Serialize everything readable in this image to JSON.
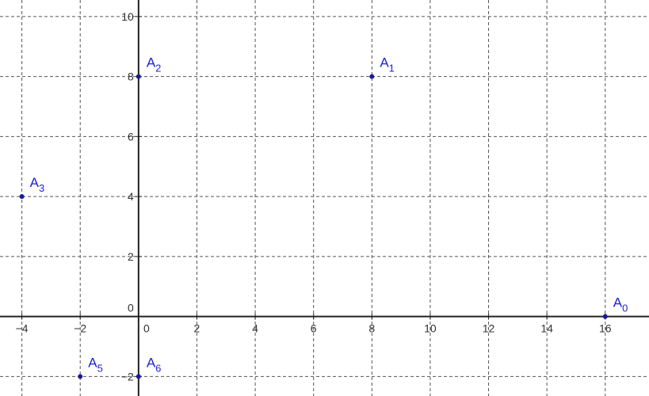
{
  "chart_data": {
    "type": "scatter",
    "title": "",
    "xlabel": "",
    "ylabel": "",
    "xlim": [
      -4.75,
      17.5
    ],
    "ylim": [
      -2.65,
      10.55
    ],
    "grid": true,
    "x_ticks": [
      -4,
      -2,
      0,
      2,
      4,
      6,
      8,
      10,
      12,
      14,
      16
    ],
    "y_ticks": [
      -2,
      0,
      2,
      4,
      6,
      8,
      10
    ],
    "x_tick_labels": [
      "−4",
      "−2",
      "0",
      "2",
      "4",
      "6",
      "8",
      "10",
      "12",
      "14",
      "16"
    ],
    "y_tick_labels": [
      "−2",
      "0",
      "2",
      "4",
      "6",
      "8",
      "10"
    ],
    "points": [
      {
        "name": "A",
        "index": "0",
        "x": 16,
        "y": 0
      },
      {
        "name": "A",
        "index": "1",
        "x": 8,
        "y": 8
      },
      {
        "name": "A",
        "index": "2",
        "x": 0,
        "y": 8
      },
      {
        "name": "A",
        "index": "3",
        "x": -4,
        "y": 4
      },
      {
        "name": "A",
        "index": "5",
        "x": -2,
        "y": -2
      },
      {
        "name": "A",
        "index": "6",
        "x": 0,
        "y": -2
      }
    ],
    "colors": {
      "point": "#1a1a99",
      "label": "#1f1fd6",
      "axis": "#222222",
      "grid": "#555555"
    }
  }
}
